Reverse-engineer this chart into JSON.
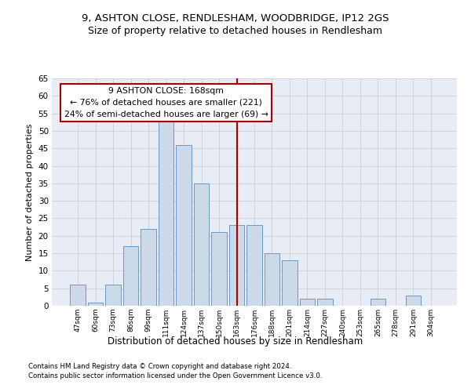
{
  "title1": "9, ASHTON CLOSE, RENDLESHAM, WOODBRIDGE, IP12 2GS",
  "title2": "Size of property relative to detached houses in Rendlesham",
  "xlabel": "Distribution of detached houses by size in Rendlesham",
  "ylabel": "Number of detached properties",
  "categories": [
    "47sqm",
    "60sqm",
    "73sqm",
    "86sqm",
    "99sqm",
    "111sqm",
    "124sqm",
    "137sqm",
    "150sqm",
    "163sqm",
    "176sqm",
    "188sqm",
    "201sqm",
    "214sqm",
    "227sqm",
    "240sqm",
    "253sqm",
    "265sqm",
    "278sqm",
    "291sqm",
    "304sqm"
  ],
  "values": [
    6,
    1,
    6,
    17,
    22,
    54,
    46,
    35,
    21,
    23,
    23,
    15,
    13,
    2,
    2,
    0,
    0,
    2,
    0,
    3,
    0
  ],
  "bar_color": "#ccd9e8",
  "bar_edge_color": "#6699cc",
  "annotation_line1": "9 ASHTON CLOSE: 168sqm",
  "annotation_line2": "← 76% of detached houses are smaller (221)",
  "annotation_line3": "24% of semi-detached houses are larger (69) →",
  "annotation_box_color": "#ffffff",
  "annotation_box_edge": "#aa0000",
  "vline_color": "#aa0000",
  "vline_index": 9,
  "ylim": [
    0,
    65
  ],
  "yticks": [
    0,
    5,
    10,
    15,
    20,
    25,
    30,
    35,
    40,
    45,
    50,
    55,
    60,
    65
  ],
  "grid_color": "#c8d0dc",
  "background_color": "#e8ecf4",
  "footnote1": "Contains HM Land Registry data © Crown copyright and database right 2024.",
  "footnote2": "Contains public sector information licensed under the Open Government Licence v3.0."
}
